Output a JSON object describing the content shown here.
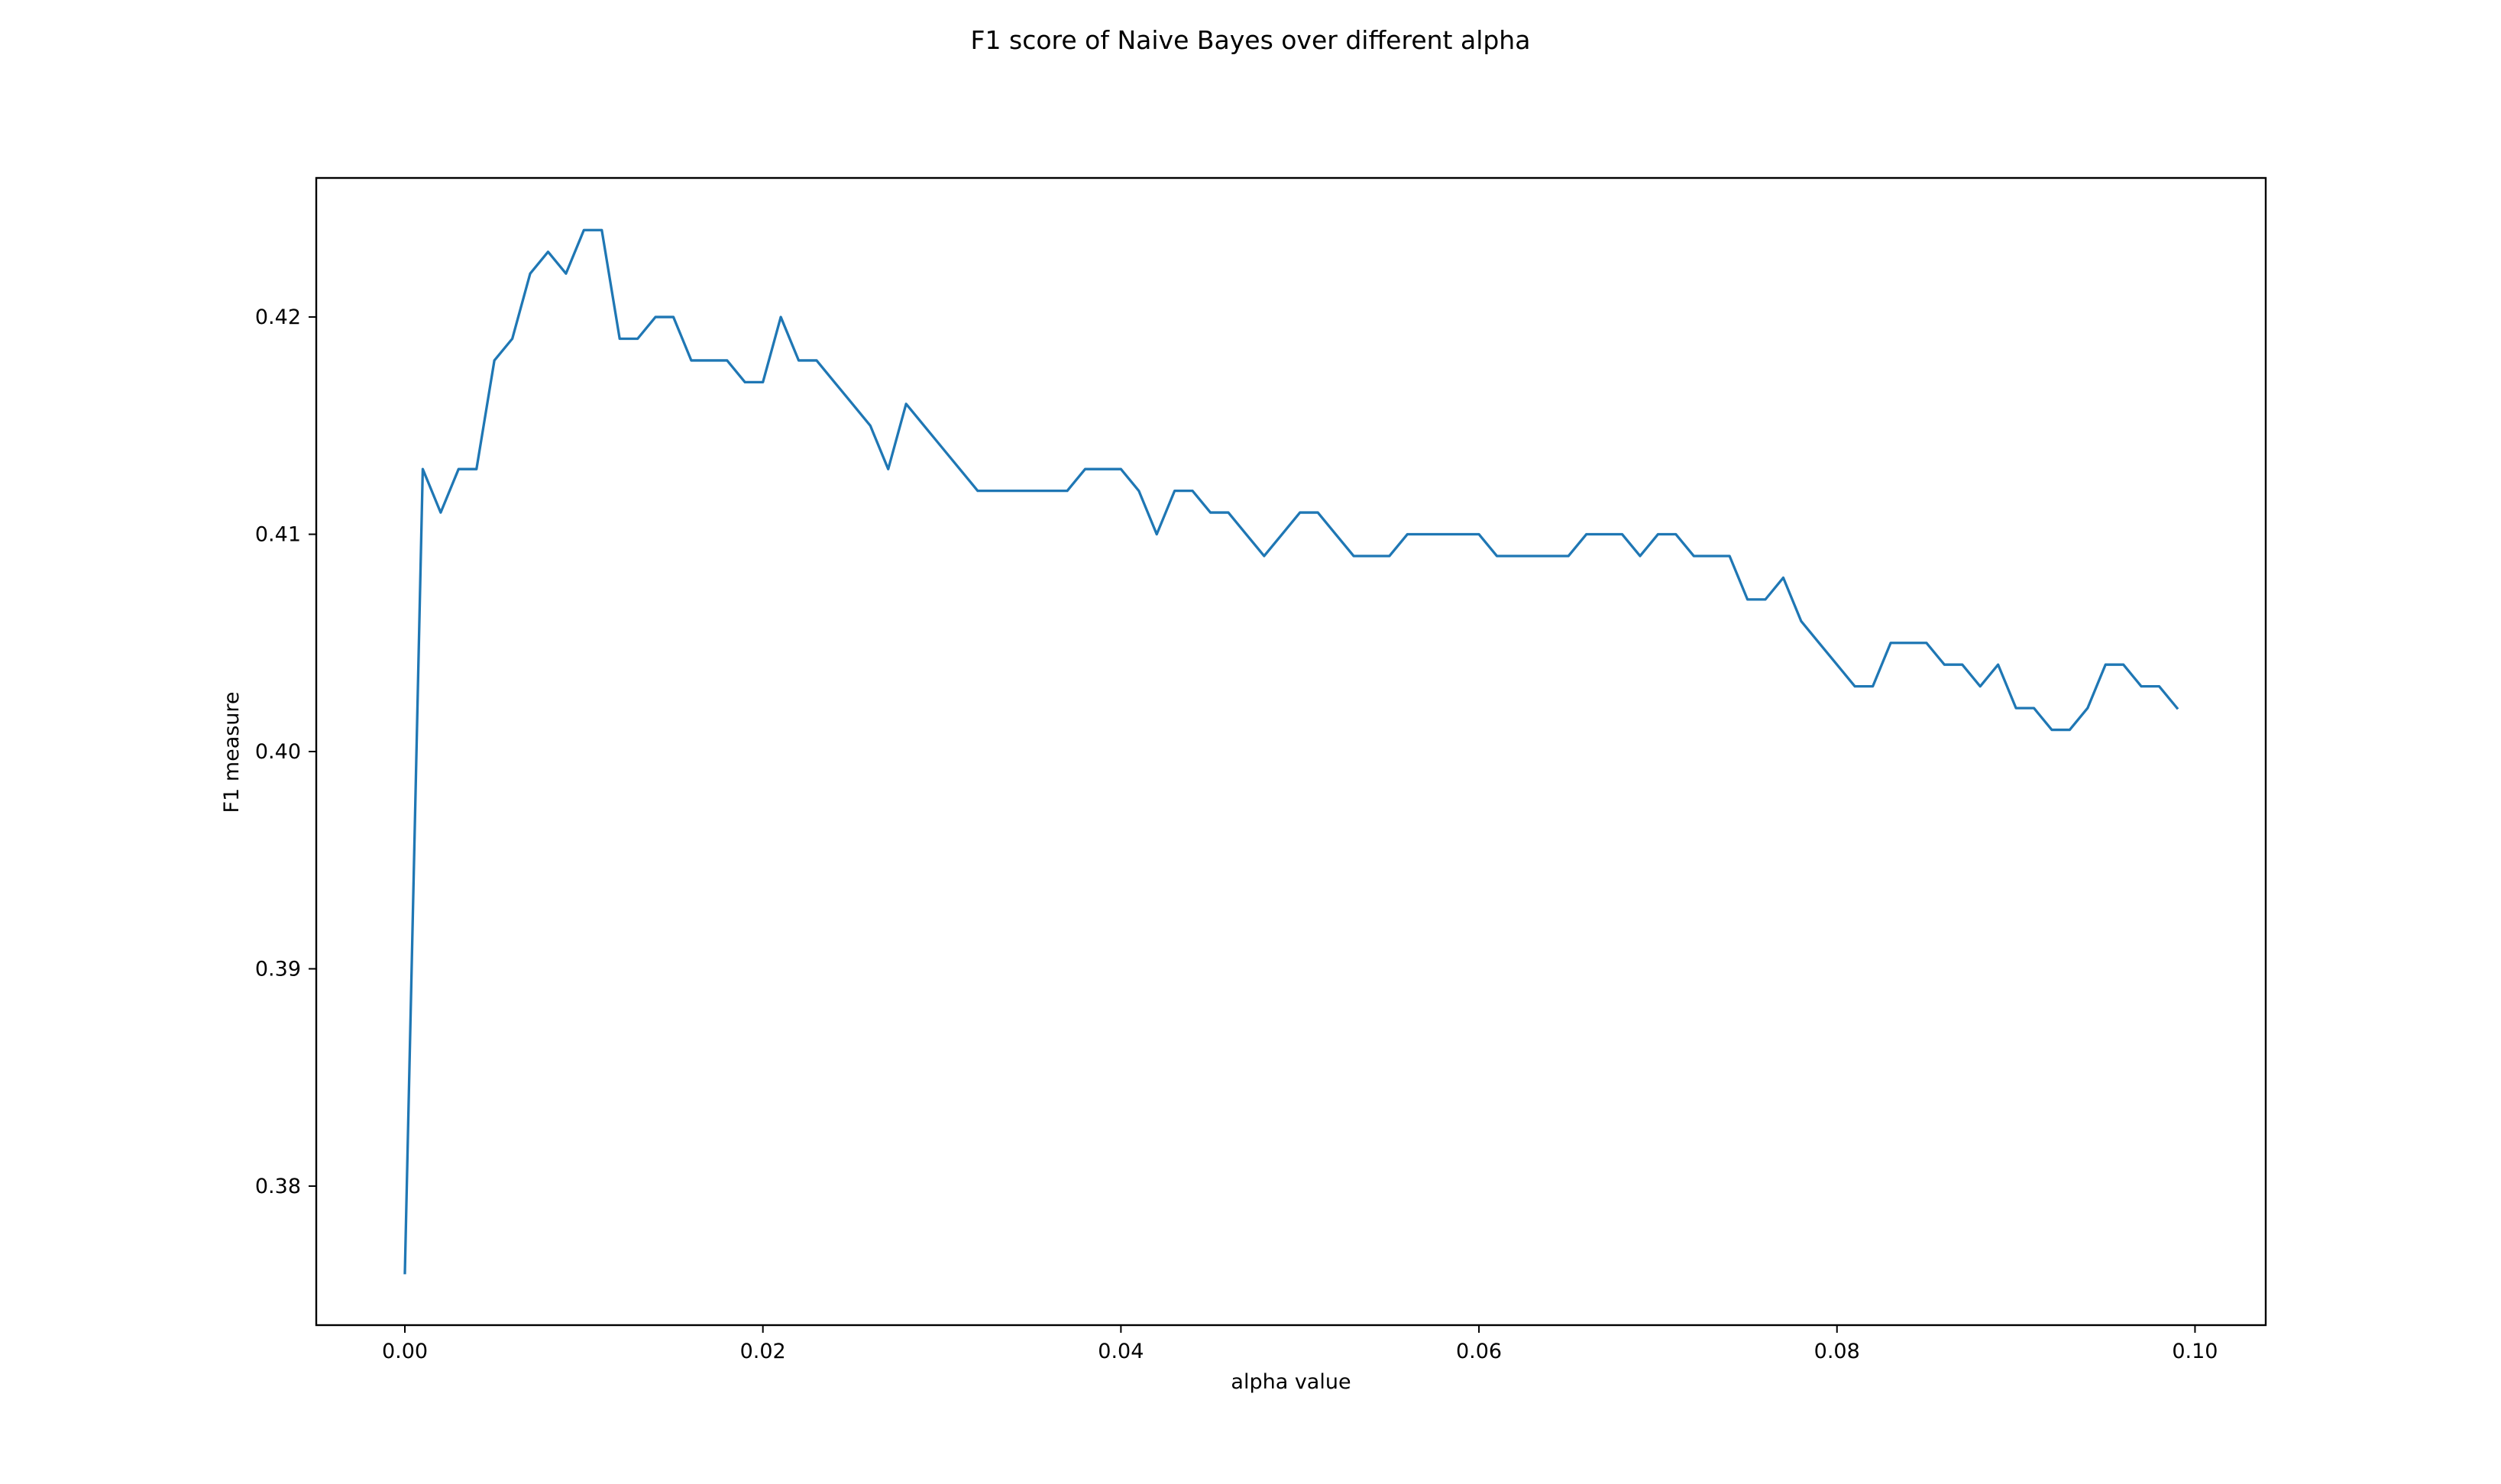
{
  "chart_data": {
    "type": "line",
    "title": "F1 score of Naive Bayes over different alpha",
    "xlabel": "alpha value",
    "ylabel": "F1 measure",
    "xlim": [
      -0.00495,
      0.10395
    ],
    "ylim": [
      0.3736,
      0.4264
    ],
    "xticks": [
      0.0,
      0.02,
      0.04,
      0.06,
      0.08,
      0.1
    ],
    "xtick_labels": [
      "0.00",
      "0.02",
      "0.04",
      "0.06",
      "0.08",
      "0.10"
    ],
    "yticks": [
      0.38,
      0.39,
      0.4,
      0.41,
      0.42
    ],
    "ytick_labels": [
      "0.38",
      "0.39",
      "0.40",
      "0.41",
      "0.42"
    ],
    "grid": false,
    "legend": "none",
    "series": [
      {
        "color": "#1f77b4",
        "x": [
          0.0,
          0.001,
          0.002,
          0.003,
          0.004,
          0.005,
          0.006,
          0.007,
          0.008,
          0.009,
          0.01,
          0.011,
          0.012,
          0.013,
          0.014,
          0.015,
          0.016,
          0.017,
          0.018,
          0.019,
          0.02,
          0.021,
          0.022,
          0.023,
          0.024,
          0.025,
          0.026,
          0.027,
          0.028,
          0.029,
          0.03,
          0.031,
          0.032,
          0.033,
          0.034,
          0.035,
          0.036,
          0.037,
          0.038,
          0.039,
          0.04,
          0.041,
          0.042,
          0.043,
          0.044,
          0.045,
          0.046,
          0.047,
          0.048,
          0.049,
          0.05,
          0.051,
          0.052,
          0.053,
          0.054,
          0.055,
          0.056,
          0.057,
          0.058,
          0.059,
          0.06,
          0.061,
          0.062,
          0.063,
          0.064,
          0.065,
          0.066,
          0.067,
          0.068,
          0.069,
          0.07,
          0.071,
          0.072,
          0.073,
          0.074,
          0.075,
          0.076,
          0.077,
          0.078,
          0.079,
          0.08,
          0.081,
          0.082,
          0.083,
          0.084,
          0.085,
          0.086,
          0.087,
          0.088,
          0.089,
          0.09,
          0.091,
          0.092,
          0.093,
          0.094,
          0.095,
          0.096,
          0.097,
          0.098,
          0.099
        ],
        "y": [
          0.376,
          0.413,
          0.411,
          0.413,
          0.413,
          0.418,
          0.419,
          0.422,
          0.423,
          0.422,
          0.424,
          0.424,
          0.419,
          0.419,
          0.42,
          0.42,
          0.418,
          0.418,
          0.418,
          0.417,
          0.417,
          0.42,
          0.418,
          0.418,
          0.417,
          0.416,
          0.415,
          0.413,
          0.416,
          0.415,
          0.414,
          0.413,
          0.412,
          0.412,
          0.412,
          0.412,
          0.412,
          0.412,
          0.413,
          0.413,
          0.413,
          0.412,
          0.41,
          0.412,
          0.412,
          0.411,
          0.411,
          0.41,
          0.409,
          0.41,
          0.411,
          0.411,
          0.41,
          0.409,
          0.409,
          0.409,
          0.41,
          0.41,
          0.41,
          0.41,
          0.41,
          0.409,
          0.409,
          0.409,
          0.409,
          0.409,
          0.41,
          0.41,
          0.41,
          0.409,
          0.41,
          0.41,
          0.409,
          0.409,
          0.409,
          0.407,
          0.407,
          0.408,
          0.406,
          0.405,
          0.404,
          0.403,
          0.403,
          0.405,
          0.405,
          0.405,
          0.404,
          0.404,
          0.403,
          0.404,
          0.402,
          0.402,
          0.401,
          0.401,
          0.402,
          0.404,
          0.404,
          0.403,
          0.403,
          0.402
        ]
      }
    ]
  }
}
